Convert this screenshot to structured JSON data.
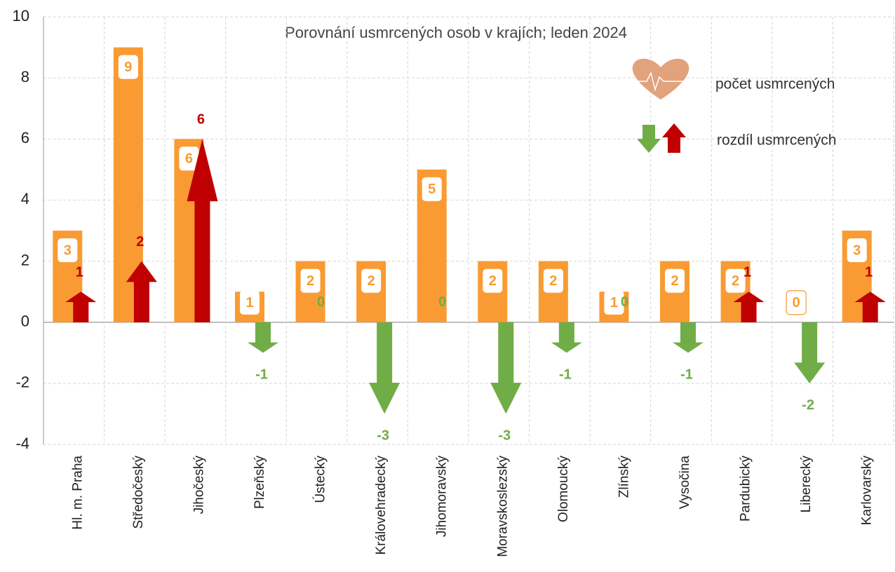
{
  "chart_data": {
    "type": "bar_arrow",
    "title": "Porovnání usmrcených osob v krajích; leden 2024",
    "categories": [
      "Hl. m. Praha",
      "Středočeský",
      "Jihočeský",
      "Plzeňský",
      "Ústecký",
      "Královehradecký",
      "Jihomoravský",
      "Moravskoslezský",
      "Olomoucký",
      "Zlínský",
      "Vysočina",
      "Pardubický",
      "Liberecký",
      "Karlovarský"
    ],
    "series": [
      {
        "name": "počet usmrcených",
        "color": "#f99b32",
        "values": [
          3,
          9,
          6,
          1,
          2,
          2,
          5,
          2,
          2,
          1,
          2,
          2,
          0,
          3
        ]
      },
      {
        "name": "rozdíl usmrcených",
        "color": "#c00000",
        "color_negative": "#70ad47",
        "values": [
          1,
          2,
          6,
          -1,
          0,
          -3,
          0,
          -3,
          -1,
          0,
          -1,
          1,
          -2,
          1
        ]
      }
    ],
    "ylim": [
      -4,
      10
    ],
    "yticks": [
      -4,
      -2,
      0,
      2,
      4,
      6,
      8,
      10
    ],
    "grid": true
  }
}
